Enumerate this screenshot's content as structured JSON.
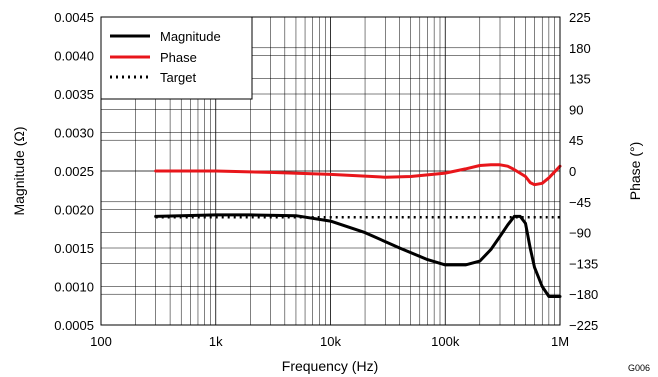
{
  "chart_data": {
    "type": "line",
    "title": "",
    "xlabel": "Frequency (Hz)",
    "ylabel": "Magnitude (Ω)",
    "y2label": "Phase (°)",
    "figure_id": "G006",
    "xscale": "log",
    "xlim": [
      100,
      1000000
    ],
    "ylim": [
      0.0005,
      0.0045
    ],
    "y2lim": [
      -225,
      225
    ],
    "x_ticks": [
      100,
      1000,
      10000,
      100000,
      1000000
    ],
    "x_tick_labels": [
      "100",
      "1k",
      "10k",
      "100k",
      "1M"
    ],
    "y_ticks": [
      0.0005,
      0.001,
      0.0015,
      0.002,
      0.0025,
      0.003,
      0.0035,
      0.004,
      0.0045
    ],
    "y_tick_labels": [
      "0.0005",
      "0.0010",
      "0.0015",
      "0.0020",
      "0.0025",
      "0.0030",
      "0.0035",
      "0.0040",
      "0.0045"
    ],
    "y2_ticks": [
      -225,
      -180,
      -135,
      -90,
      -45,
      0,
      45,
      90,
      135,
      180,
      225
    ],
    "y2_tick_labels": [
      "−225",
      "−180",
      "−135",
      "−90",
      "−45",
      "0",
      "45",
      "90",
      "135",
      "180",
      "225"
    ],
    "grid": true,
    "legend_position": "top-left",
    "series": [
      {
        "name": "Magnitude",
        "axis": "left",
        "color": "#000000",
        "style": "solid",
        "x": [
          300,
          500,
          1000,
          2000,
          5000,
          10000,
          20000,
          40000,
          70000,
          100000,
          150000,
          200000,
          250000,
          300000,
          350000,
          400000,
          450000,
          500000,
          550000,
          600000,
          700000,
          800000,
          1000000
        ],
        "y": [
          0.00191,
          0.00192,
          0.00193,
          0.00193,
          0.00192,
          0.00185,
          0.0017,
          0.0015,
          0.00135,
          0.00128,
          0.00128,
          0.00133,
          0.00148,
          0.00165,
          0.0018,
          0.00191,
          0.00191,
          0.00182,
          0.0015,
          0.00125,
          0.001,
          0.00087,
          0.00087
        ]
      },
      {
        "name": "Phase",
        "axis": "right",
        "color": "#e8161b",
        "style": "solid",
        "x": [
          300,
          1000,
          3000,
          10000,
          30000,
          50000,
          100000,
          150000,
          200000,
          250000,
          300000,
          350000,
          400000,
          500000,
          550000,
          600000,
          700000,
          800000,
          1000000
        ],
        "y": [
          0,
          0,
          -2,
          -5,
          -9,
          -8,
          -3,
          3,
          8,
          9,
          9,
          7,
          2,
          -8,
          -17,
          -20,
          -18,
          -10,
          7
        ]
      },
      {
        "name": "Target",
        "axis": "left",
        "color": "#000000",
        "style": "dotted",
        "x": [
          300,
          1000000
        ],
        "y": [
          0.0019,
          0.0019
        ]
      }
    ]
  }
}
